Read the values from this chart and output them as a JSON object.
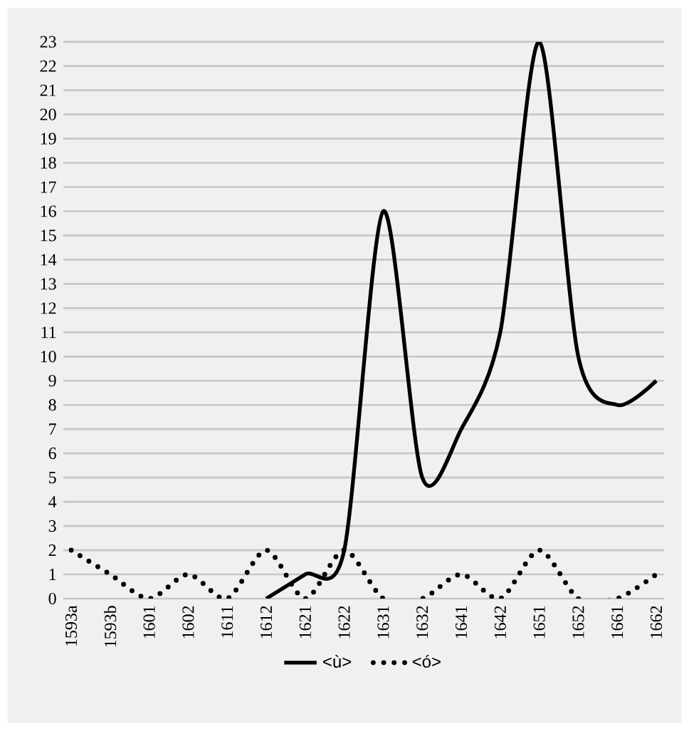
{
  "chart_data": {
    "type": "line",
    "categories": [
      "1593a",
      "1593b",
      "1601",
      "1602",
      "1611",
      "1612",
      "1621",
      "1622",
      "1631",
      "1632",
      "1641",
      "1642",
      "1651",
      "1652",
      "1661",
      "1662"
    ],
    "series": [
      {
        "name": "<ù>",
        "color": "#000000",
        "line_style": "solid",
        "values": [
          null,
          null,
          null,
          null,
          null,
          0,
          1,
          2,
          16,
          5,
          7,
          11,
          23,
          10,
          8,
          9
        ]
      },
      {
        "name": "<ó>",
        "color": "#000000",
        "line_style": "dotted",
        "values": [
          2,
          1,
          0,
          1,
          0,
          2,
          0,
          2,
          0,
          0,
          1,
          0,
          2,
          0,
          0,
          1
        ]
      }
    ],
    "ylim": [
      0,
      23
    ],
    "yticks": [
      0,
      1,
      2,
      3,
      4,
      5,
      6,
      7,
      8,
      9,
      10,
      11,
      12,
      13,
      14,
      15,
      16,
      17,
      18,
      19,
      20,
      21,
      22,
      23
    ],
    "grid": "y",
    "legend": "bottom"
  }
}
